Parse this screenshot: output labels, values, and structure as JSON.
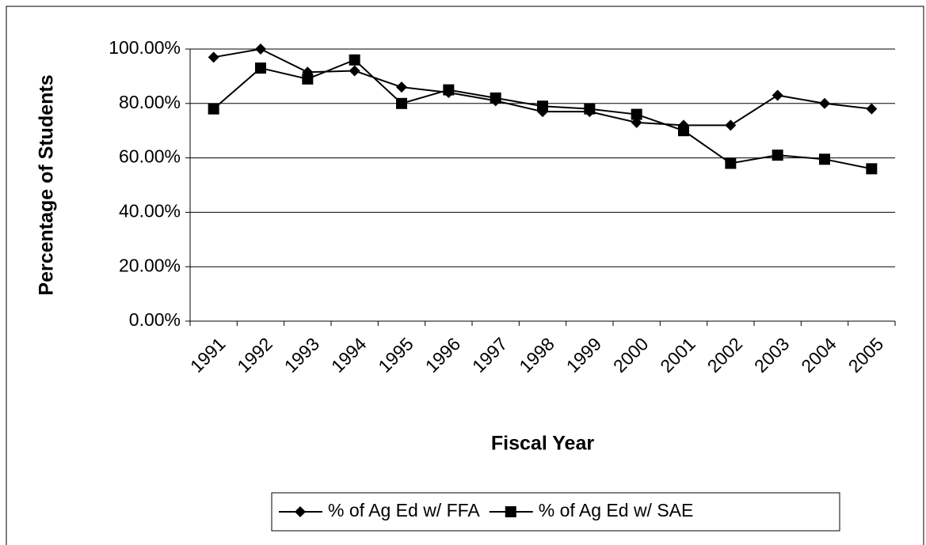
{
  "chart_data": {
    "type": "line",
    "y_label": "Percentage of Students",
    "x_label": "Fiscal Year",
    "categories": [
      "1991",
      "1992",
      "1993",
      "1994",
      "1995",
      "1996",
      "1997",
      "1998",
      "1999",
      "2000",
      "2001",
      "2002",
      "2003",
      "2004",
      "2005"
    ],
    "series": [
      {
        "name": "% of Ag Ed w/ FFA",
        "color": "#000000",
        "marker": "diamond",
        "values": [
          97,
          100,
          91.5,
          92,
          86,
          84,
          81,
          77,
          77,
          73,
          72,
          72,
          83,
          80,
          78
        ]
      },
      {
        "name": "% of Ag Ed w/ SAE",
        "color": "#000000",
        "marker": "square",
        "values": [
          78,
          93,
          89,
          96,
          80,
          85,
          82,
          79,
          78,
          76,
          70,
          58,
          61,
          59.5,
          56
        ]
      }
    ],
    "ylim": [
      0,
      100
    ],
    "yticks": [
      {
        "value": 0,
        "label": "0.00%"
      },
      {
        "value": 20,
        "label": "20.00%"
      },
      {
        "value": 40,
        "label": "40.00%"
      },
      {
        "value": 60,
        "label": "60.00%"
      },
      {
        "value": 80,
        "label": "80.00%"
      },
      {
        "value": 100,
        "label": "100.00%"
      }
    ],
    "grid": true,
    "legend": "bottom"
  }
}
